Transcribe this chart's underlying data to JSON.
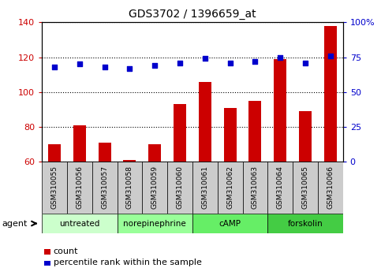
{
  "title": "GDS3702 / 1396659_at",
  "samples": [
    "GSM310055",
    "GSM310056",
    "GSM310057",
    "GSM310058",
    "GSM310059",
    "GSM310060",
    "GSM310061",
    "GSM310062",
    "GSM310063",
    "GSM310064",
    "GSM310065",
    "GSM310066"
  ],
  "count_values": [
    70,
    81,
    71,
    61,
    70,
    93,
    106,
    91,
    95,
    119,
    89,
    138
  ],
  "percentile_values": [
    68,
    70,
    68,
    67,
    69,
    71,
    74,
    71,
    72,
    75,
    71,
    76
  ],
  "bar_color": "#cc0000",
  "dot_color": "#0000cc",
  "ylim_left": [
    60,
    140
  ],
  "ylim_right": [
    0,
    100
  ],
  "yticks_left": [
    60,
    80,
    100,
    120,
    140
  ],
  "yticks_right": [
    0,
    25,
    50,
    75,
    100
  ],
  "ytick_labels_right": [
    "0",
    "25",
    "50",
    "75",
    "100%"
  ],
  "groups": [
    {
      "label": "untreated",
      "start": 0,
      "end": 3
    },
    {
      "label": "norepinephrine",
      "start": 3,
      "end": 6
    },
    {
      "label": "cAMP",
      "start": 6,
      "end": 9
    },
    {
      "label": "forskolin",
      "start": 9,
      "end": 12
    }
  ],
  "group_colors": [
    "#ccffcc",
    "#99ff99",
    "#66ee66",
    "#44cc44"
  ],
  "agent_label": "agent",
  "legend_count_label": "count",
  "legend_percentile_label": "percentile rank within the sample",
  "plot_bg_color": "#ffffff",
  "tick_label_color_left": "#cc0000",
  "tick_label_color_right": "#0000cc",
  "sample_box_color": "#cccccc",
  "bar_width": 0.5
}
